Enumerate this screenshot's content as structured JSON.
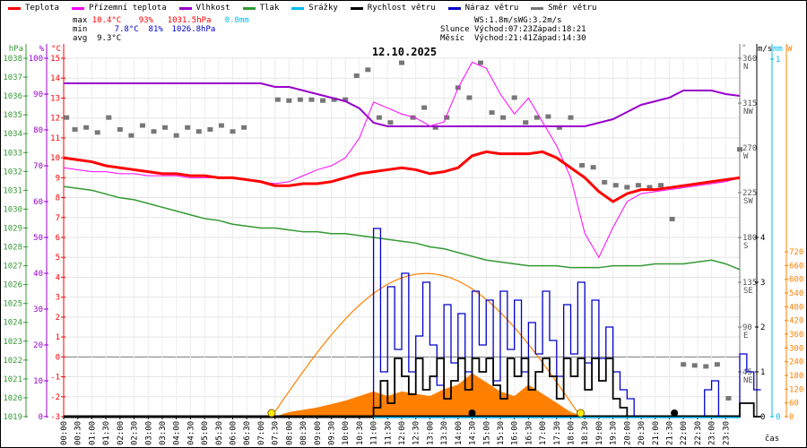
{
  "legend": [
    {
      "label": "Teplota",
      "color": "#ff0000"
    },
    {
      "label": "Přízemní teplota",
      "color": "#ff00ff"
    },
    {
      "label": "Vlhkost",
      "color": "#9900cc"
    },
    {
      "label": "Tlak",
      "color": "#339933"
    },
    {
      "label": "Srážky",
      "color": "#00bbee"
    },
    {
      "label": "Rychlost větru",
      "color": "#000000"
    },
    {
      "label": "Náraz větru",
      "color": "#0000cc"
    },
    {
      "label": "Směr větru",
      "color": "#777777"
    }
  ],
  "stats": {
    "max_label": "max",
    "max_temp": "10.4°C",
    "max_hum": "93%",
    "max_press": "1031.5hPa",
    "max_rain": "0.0mm",
    "min_label": "min",
    "min_temp": "7.8°C",
    "min_hum": "81%",
    "min_press": "1026.8hPa",
    "avg_label": "avg",
    "avg_temp": "9.3°C"
  },
  "astro": {
    "ws": "WS:1.8m/s",
    "wg": "WG:3.2m/s",
    "sun_label": "Slunce",
    "sun_rise": "Východ:07:23",
    "sun_set": "Západ:18:21",
    "moon_label": "Měsíc",
    "moon_rise": "Východ:21:41",
    "moon_set": "Západ:14:30"
  },
  "chart_data": {
    "type": "line",
    "title": "12.10.2025",
    "xlabel": "čas",
    "x_start_hour": 0,
    "x_end_hour": 24,
    "x_tick_step_min": 30,
    "axes": {
      "pressure": {
        "unit": "hPa",
        "range": [
          1019,
          1038
        ],
        "step": 1,
        "color": "#339933"
      },
      "humidity": {
        "unit": "%",
        "range": [
          0,
          100
        ],
        "step": 10,
        "color": "#9900cc"
      },
      "temperature": {
        "unit": "°C",
        "range": [
          -3,
          15
        ],
        "step": 1,
        "color": "#ff0000"
      },
      "direction": {
        "unit": "°",
        "range": [
          0,
          360
        ],
        "step": 45,
        "names": {
          "45": "NE",
          "90": "E",
          "135": "SE",
          "180": "S",
          "225": "SW",
          "270": "W",
          "315": "NW",
          "360": "N"
        },
        "color": "#777777"
      },
      "wind": {
        "unit": "m/s",
        "range": [
          0,
          4
        ],
        "step": 1,
        "color": "#000000"
      },
      "rain": {
        "unit": "mm",
        "range": [
          0,
          1
        ],
        "step": 1,
        "color": "#00bbee"
      },
      "radiation": {
        "unit": "W",
        "range": [
          0,
          720
        ],
        "step": 60,
        "color": "#ff8000"
      }
    },
    "half_hour_step_h": 0.5,
    "temperature": [
      10.0,
      9.9,
      9.8,
      9.6,
      9.5,
      9.4,
      9.3,
      9.2,
      9.2,
      9.1,
      9.1,
      9.0,
      9.0,
      8.9,
      8.8,
      8.6,
      8.6,
      8.7,
      8.7,
      8.8,
      9.0,
      9.2,
      9.3,
      9.4,
      9.5,
      9.4,
      9.2,
      9.3,
      9.5,
      10.1,
      10.3,
      10.2,
      10.2,
      10.2,
      10.3,
      10.0,
      9.5,
      9.0,
      8.3,
      7.8,
      8.2,
      8.4,
      8.4,
      8.5,
      8.6,
      8.7,
      8.8,
      8.9,
      9.0
    ],
    "apparent_temperature": [
      9.5,
      9.4,
      9.3,
      9.3,
      9.2,
      9.2,
      9.1,
      9.1,
      9.1,
      9.0,
      9.0,
      9.0,
      9.0,
      8.9,
      8.8,
      8.7,
      8.8,
      9.1,
      9.4,
      9.6,
      10.0,
      11.0,
      12.8,
      12.5,
      12.2,
      12.0,
      11.6,
      11.8,
      13.5,
      14.8,
      14.5,
      13.2,
      12.2,
      13.0,
      11.8,
      10.6,
      9.0,
      6.2,
      5.0,
      6.5,
      7.8,
      8.2,
      8.3,
      8.4,
      8.5,
      8.6,
      8.7,
      8.8,
      9.0
    ],
    "humidity": [
      93,
      93,
      93,
      93,
      93,
      93,
      93,
      93,
      93,
      93,
      93,
      93,
      93,
      93,
      93,
      92,
      92,
      91,
      90,
      89,
      88,
      86,
      82,
      81,
      81,
      81,
      81,
      81,
      81,
      81,
      81,
      81,
      81,
      81,
      81,
      81,
      81,
      81,
      82,
      83,
      85,
      87,
      88,
      89,
      91,
      91,
      91,
      90,
      89.5
    ],
    "pressure": [
      1031.2,
      1031.1,
      1031.0,
      1030.8,
      1030.6,
      1030.5,
      1030.3,
      1030.1,
      1029.9,
      1029.7,
      1029.5,
      1029.4,
      1029.2,
      1029.1,
      1029.0,
      1029.0,
      1028.9,
      1028.8,
      1028.8,
      1028.7,
      1028.7,
      1028.6,
      1028.5,
      1028.4,
      1028.3,
      1028.2,
      1028.0,
      1027.9,
      1027.7,
      1027.5,
      1027.3,
      1027.2,
      1027.1,
      1027.0,
      1027.0,
      1027.0,
      1026.9,
      1026.9,
      1026.9,
      1027.0,
      1027.0,
      1027.0,
      1027.1,
      1027.1,
      1027.1,
      1027.2,
      1027.3,
      1027.1,
      1026.8
    ],
    "radiation": [
      0,
      0,
      0,
      0,
      0,
      0,
      0,
      0,
      0,
      0,
      0,
      0,
      0,
      0,
      0,
      0,
      20,
      30,
      40,
      55,
      70,
      90,
      110,
      90,
      110,
      100,
      90,
      120,
      140,
      190,
      150,
      110,
      90,
      140,
      100,
      60,
      20,
      0,
      0,
      0,
      0,
      0,
      0,
      0,
      0,
      0,
      0,
      0,
      0
    ],
    "clear_sky_radiation_peak": 625,
    "rain": [
      0
    ],
    "quarter_hour_step_h": 0.25,
    "wind_speed_start_hour": 11,
    "wind_speed": [
      0.2,
      0.8,
      0.3,
      1.3,
      0.9,
      0.5,
      1.3,
      0.6,
      0.9,
      1.3,
      0.4,
      0.8,
      1.3,
      0.6,
      1.3,
      1.0,
      1.3,
      0.7,
      0.4,
      1.3,
      0.9,
      1.3,
      0.6,
      1.0,
      1.3,
      0.9,
      0.4,
      1.3,
      0.9,
      1.3,
      0.6,
      1.3,
      0.8,
      1.3,
      0.4,
      0.2,
      0,
      0,
      0,
      0,
      0,
      0,
      0,
      0,
      0,
      0,
      0,
      0,
      0,
      0,
      0,
      0,
      0.3,
      0.3,
      0
    ],
    "wind_gust": [
      4.2,
      1.0,
      2.9,
      1.5,
      3.2,
      1.0,
      1.8,
      3.0,
      1.6,
      0.7,
      2.5,
      1.2,
      2.3,
      1.0,
      2.8,
      1.6,
      2.6,
      0.8,
      2.8,
      1.5,
      2.6,
      1.0,
      2.1,
      1.4,
      2.8,
      1.7,
      0.9,
      2.5,
      1.4,
      3.0,
      1.2,
      2.6,
      1.3,
      2.0,
      1.0,
      0.6,
      0.4,
      0,
      0,
      0,
      0,
      0,
      0,
      0,
      0,
      0,
      0,
      0.6,
      0.8,
      0,
      0,
      0,
      1.4,
      1.0,
      0.6
    ],
    "wind_direction": [
      [
        0.1,
        300
      ],
      [
        0.4,
        288
      ],
      [
        0.8,
        290
      ],
      [
        1.2,
        285
      ],
      [
        1.6,
        300
      ],
      [
        2.0,
        288
      ],
      [
        2.4,
        282
      ],
      [
        2.8,
        292
      ],
      [
        3.2,
        286
      ],
      [
        3.6,
        290
      ],
      [
        4.0,
        282
      ],
      [
        4.4,
        290
      ],
      [
        4.8,
        286
      ],
      [
        5.2,
        288
      ],
      [
        5.6,
        292
      ],
      [
        6.0,
        286
      ],
      [
        6.4,
        290
      ],
      [
        7.6,
        318
      ],
      [
        8.0,
        317
      ],
      [
        8.4,
        318
      ],
      [
        8.8,
        318
      ],
      [
        9.2,
        317
      ],
      [
        9.6,
        318
      ],
      [
        10.0,
        318
      ],
      [
        10.4,
        342
      ],
      [
        10.8,
        348
      ],
      [
        11.2,
        300
      ],
      [
        11.6,
        295
      ],
      [
        12.0,
        355
      ],
      [
        12.4,
        300
      ],
      [
        12.8,
        310
      ],
      [
        13.2,
        290
      ],
      [
        13.6,
        300
      ],
      [
        14.0,
        330
      ],
      [
        14.4,
        320
      ],
      [
        14.8,
        355
      ],
      [
        15.2,
        305
      ],
      [
        15.6,
        300
      ],
      [
        16.0,
        320
      ],
      [
        16.4,
        295
      ],
      [
        16.8,
        300
      ],
      [
        17.2,
        301
      ],
      [
        17.6,
        290
      ],
      [
        18.0,
        300
      ],
      [
        18.4,
        252
      ],
      [
        18.8,
        250
      ],
      [
        19.2,
        235
      ],
      [
        19.6,
        232
      ],
      [
        20.0,
        230
      ],
      [
        20.4,
        232
      ],
      [
        20.8,
        230
      ],
      [
        21.2,
        232
      ],
      [
        21.6,
        198
      ],
      [
        22.0,
        52
      ],
      [
        22.4,
        51
      ],
      [
        22.8,
        50
      ],
      [
        23.2,
        52
      ],
      [
        23.6,
        18
      ],
      [
        24.0,
        268
      ]
    ],
    "sun_events_h": [
      7.38,
      18.35
    ],
    "moon_events_h": [
      14.5,
      21.68
    ]
  }
}
